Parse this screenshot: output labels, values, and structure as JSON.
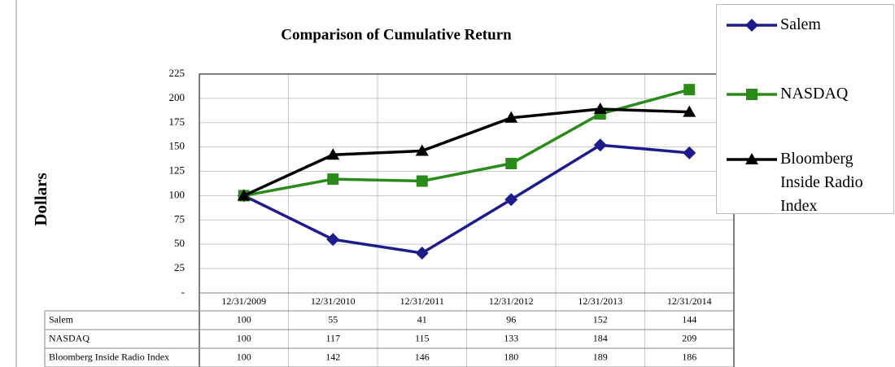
{
  "chart_data": {
    "type": "line",
    "title": "Comparison of Cumulative Return",
    "y_label": "Dollars",
    "categories": [
      "12/31/2009",
      "12/31/2010",
      "12/31/2011",
      "12/31/2012",
      "12/31/2013",
      "12/31/2014"
    ],
    "series": [
      {
        "name": "Salem",
        "color": "#1c1c8c",
        "marker": "diamond",
        "values": [
          100,
          55,
          41,
          96,
          152,
          144
        ]
      },
      {
        "name": "NASDAQ",
        "color": "#2a8a1a",
        "marker": "square",
        "values": [
          100,
          117,
          115,
          133,
          184,
          209
        ]
      },
      {
        "name": "Bloomberg Inside Radio Index",
        "color": "#000000",
        "marker": "triangle",
        "values": [
          100,
          142,
          146,
          180,
          189,
          186
        ]
      }
    ],
    "ylim": [
      0,
      225
    ],
    "yticks": [
      {
        "value": 0,
        "label": "-"
      },
      25,
      50,
      75,
      100,
      125,
      150,
      175,
      200,
      225
    ],
    "grid": true
  }
}
